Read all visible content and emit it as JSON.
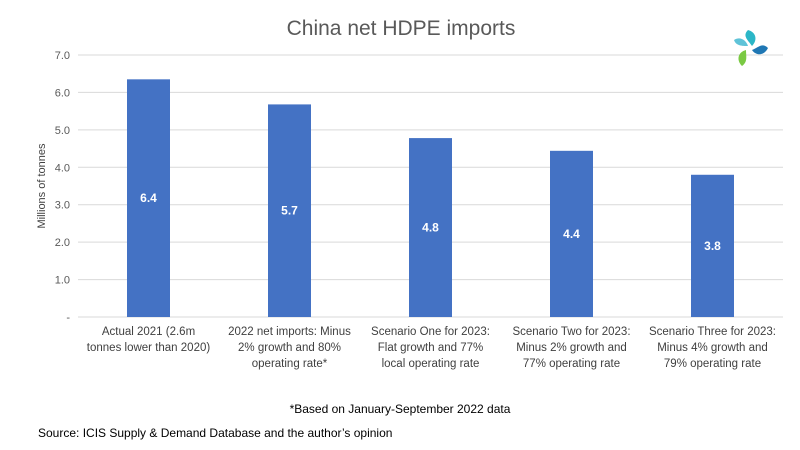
{
  "chart_data": {
    "type": "bar",
    "title": "China net HDPE imports",
    "ylabel": "Millions of tonnes",
    "xlabel": "",
    "ylim": [
      0,
      7
    ],
    "yticks": [
      "-",
      "1.0",
      "2.0",
      "3.0",
      "4.0",
      "5.0",
      "6.0",
      "7.0"
    ],
    "grid": true,
    "categories": [
      [
        "Actual 2021 (2.6m",
        "tonnes lower than 2020)"
      ],
      [
        "2022 net imports: Minus",
        "2% growth and 80%",
        "operating rate*"
      ],
      [
        "Scenario One for 2023:",
        "Flat growth and 77%",
        "local operating rate"
      ],
      [
        "Scenario Two for 2023:",
        "Minus 2% growth and",
        "77% operating rate"
      ],
      [
        "Scenario Three for 2023:",
        "Minus 4% growth and",
        "79% operating rate"
      ]
    ],
    "values": [
      6.35,
      5.68,
      4.78,
      4.44,
      3.8
    ],
    "data_labels": [
      "6.4",
      "5.7",
      "4.8",
      "4.4",
      "3.8"
    ],
    "bar_color": "#4472C4"
  },
  "footnote": "*Based on January-September 2022 data",
  "source": "Source: ICIS Supply & Demand Database and the author’s opinion",
  "logo_icon": "icis-logo-icon",
  "colors": {
    "bar": "#4472C4",
    "grid": "#d9d9d9",
    "text": "#595959"
  }
}
